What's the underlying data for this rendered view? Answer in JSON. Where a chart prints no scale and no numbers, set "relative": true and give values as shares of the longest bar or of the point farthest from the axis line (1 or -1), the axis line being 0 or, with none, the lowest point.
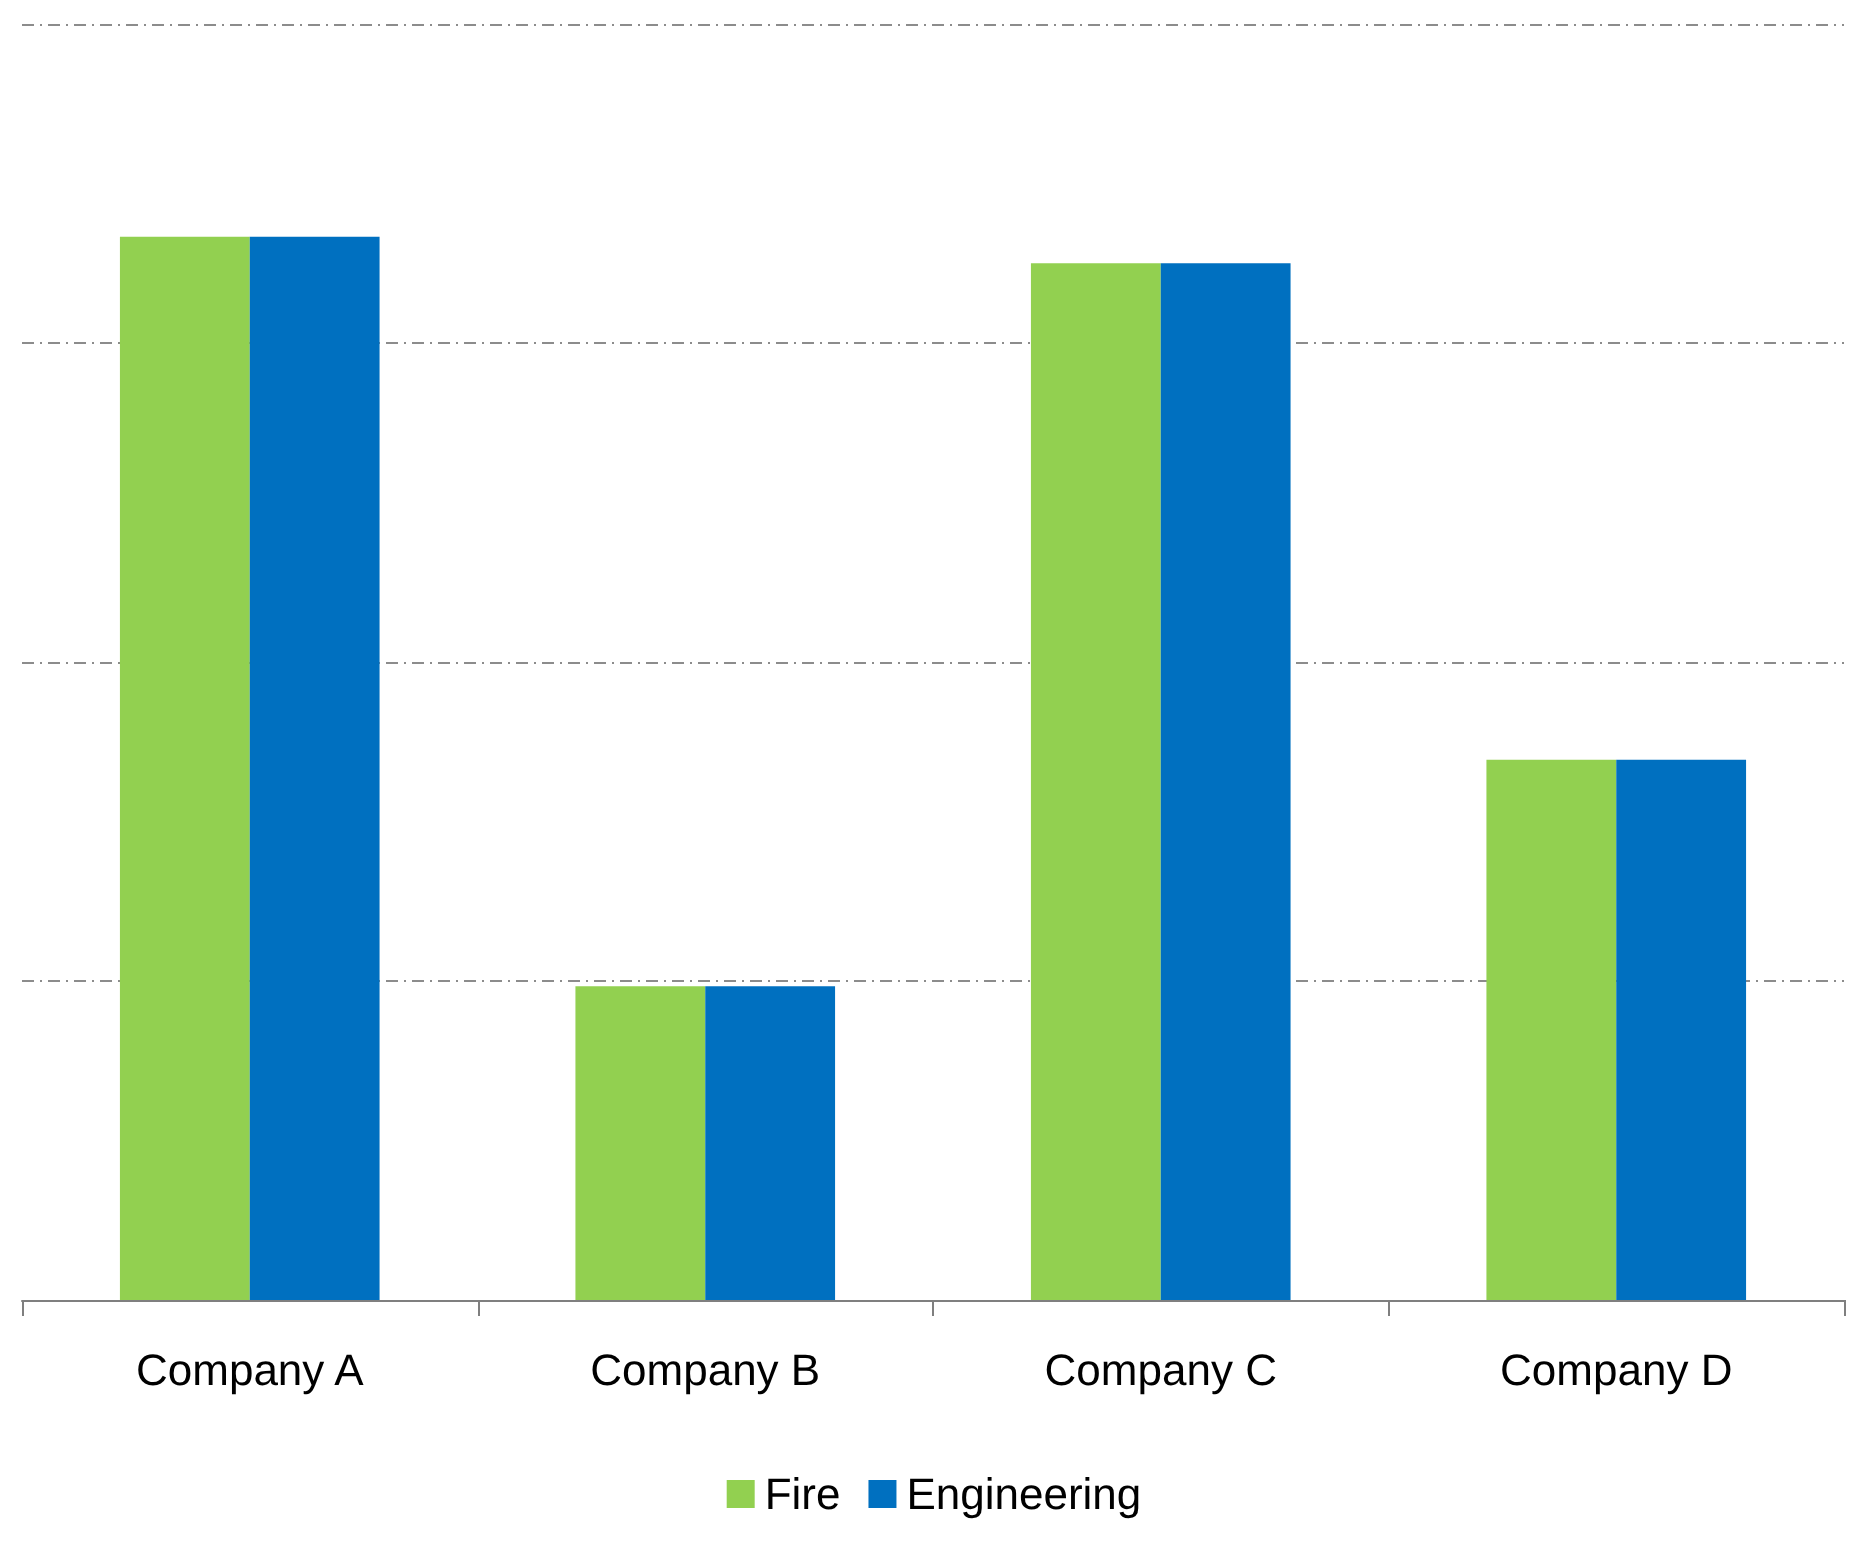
{
  "chart_data": {
    "type": "bar",
    "relative": true,
    "categories": [
      "Company A",
      "Company B",
      "Company C",
      "Company D"
    ],
    "series": [
      {
        "name": "Fire",
        "color": "#92d050",
        "values": [
          1,
          0.295,
          0.975,
          0.508
        ]
      },
      {
        "name": "Engineering",
        "color": "#0070c0",
        "values": [
          1,
          0.295,
          0.975,
          0.508
        ]
      }
    ],
    "grid": "y",
    "legend": "bottom"
  }
}
